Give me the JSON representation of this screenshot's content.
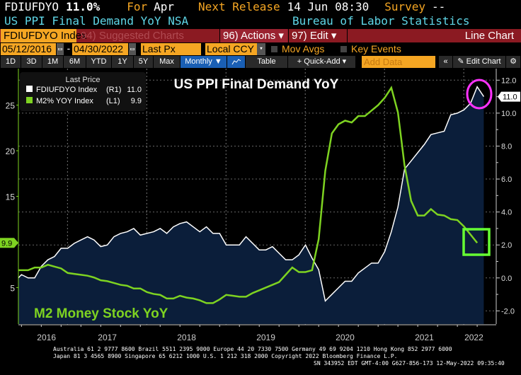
{
  "header": {
    "ticker": "FDIUFDYO",
    "value": "11.0%",
    "for_label": "For",
    "for_value": "Apr",
    "next_label": "Next Release",
    "next_value": "14 Jun 08:30",
    "survey_label": "Survey",
    "survey_value": "--",
    "description": "US PPI Final Demand YoY NSA",
    "source": "Bureau of Labor Statistics"
  },
  "commandbar": {
    "security": "FDIUFDYO Index",
    "suggested": "94) Suggested Charts",
    "actions": "96) Actions ▾",
    "edit": "97) Edit ▾",
    "chart_type": "Line Chart"
  },
  "range": {
    "start": "05/12/2016",
    "end": "04/30/2022",
    "sep": "-",
    "field": "Last Px",
    "currency": "Local CCY",
    "mov_avgs": "Mov Avgs",
    "key_events": "Key Events"
  },
  "toolbar": {
    "periods": [
      "1D",
      "3D",
      "1M",
      "6M",
      "YTD",
      "1Y",
      "5Y",
      "Max"
    ],
    "frequency": "Monthly ▼",
    "table": "Table",
    "quick_add": "+ Quick-Add ▾",
    "add_data_placeholder": "Add Data",
    "collapse": "«",
    "edit_chart": "✎ Edit Chart",
    "settings": "⚙"
  },
  "legend": {
    "title": "Last Price",
    "items": [
      {
        "name": "FDIUFDYO Index",
        "axis": "(R1)",
        "value": "11.0",
        "color": "#ffffff"
      },
      {
        "name": "M2% YOY Index",
        "axis": "(L1)",
        "value": "9.9",
        "color": "#7ed321"
      }
    ]
  },
  "footer": {
    "line1": "Australia 61 2 9777 8600 Brazil 5511 2395 9000 Europe 44 20 7330 7500 Germany 49 69 9204 1210 Hong Kong 852 2977 6000",
    "line2": "Japan 81 3 4565 8900       Singapore 65 6212 1000       U.S. 1 212 318 2000        Copyright 2022 Bloomberg Finance L.P.",
    "line3": "SN 343952 EDT  GMT-4:00 G627-856-173 12-May-2022 09:35:40"
  },
  "chart_data": {
    "type": "line",
    "title": "US PPI Final Demand YoY",
    "annotation": "M2 Money Stock YoY",
    "x_start": "2016-05",
    "x_end": "2022-04",
    "frequency": "monthly",
    "x_tick_labels": [
      "2016",
      "2017",
      "2018",
      "2019",
      "2020",
      "2021",
      "2022"
    ],
    "right_axis": {
      "ticks": [
        12,
        10,
        8,
        6,
        4,
        2,
        0,
        -2
      ],
      "tick_labels": [
        "12.0",
        "10.0",
        "8.0",
        "6.0",
        "4.0",
        "2.0",
        "0.0",
        "-2.0"
      ],
      "range": [
        -2.8,
        12.7
      ],
      "last_label": "11.0"
    },
    "left_axis": {
      "ticks": [
        25,
        20,
        15,
        5
      ],
      "tick_labels": [
        "25",
        "20",
        "15",
        "5"
      ],
      "range": [
        1.0,
        29.0
      ],
      "last_label": "9.9"
    },
    "grid": true,
    "legend_placement": "top-left",
    "series": [
      {
        "name": "FDIUFDYO Index",
        "axis": "right",
        "color": "#ffffff",
        "fill": "#0b1e3a",
        "values": [
          0.0,
          0.2,
          0.0,
          0.0,
          0.7,
          1.1,
          1.3,
          1.8,
          1.8,
          2.1,
          2.3,
          2.5,
          2.3,
          1.9,
          2.0,
          2.5,
          2.7,
          2.8,
          3.0,
          2.6,
          2.7,
          2.8,
          3.0,
          2.7,
          3.1,
          3.3,
          3.4,
          3.1,
          2.8,
          3.1,
          2.7,
          2.7,
          2.0,
          2.0,
          2.0,
          2.5,
          2.1,
          1.7,
          1.7,
          1.9,
          1.5,
          1.1,
          1.1,
          1.4,
          2.0,
          1.2,
          0.5,
          -1.4,
          -1.0,
          -0.6,
          -0.2,
          -0.2,
          0.3,
          0.6,
          0.9,
          0.9,
          1.6,
          2.8,
          4.3,
          6.6,
          7.1,
          7.6,
          8.1,
          8.7,
          8.8,
          8.9,
          9.9,
          10.0,
          10.2,
          10.6,
          11.6,
          11.0
        ]
      },
      {
        "name": "M2% YOY Index",
        "axis": "left",
        "color": "#7ed321",
        "values": [
          6.9,
          6.9,
          6.9,
          7.2,
          7.2,
          7.5,
          7.3,
          7.1,
          6.6,
          6.5,
          6.4,
          6.3,
          6.1,
          5.8,
          5.7,
          5.5,
          5.3,
          5.2,
          4.9,
          4.9,
          4.5,
          4.3,
          4.2,
          3.8,
          3.8,
          4.1,
          3.9,
          3.8,
          3.6,
          3.3,
          3.3,
          3.7,
          4.2,
          4.1,
          4.0,
          4.0,
          4.4,
          4.7,
          5.0,
          5.3,
          5.6,
          6.4,
          7.2,
          6.7,
          6.7,
          6.9,
          10.3,
          17.8,
          21.9,
          22.9,
          23.3,
          23.1,
          23.8,
          23.8,
          24.4,
          25.0,
          25.8,
          26.9,
          24.2,
          18.4,
          14.5,
          12.9,
          12.9,
          13.6,
          13.0,
          12.9,
          12.5,
          12.4,
          11.7,
          10.8,
          9.9
        ]
      }
    ],
    "highlights": [
      {
        "shape": "circle",
        "color": "#ff33ff",
        "target": "FDIUFDYO Index latest"
      },
      {
        "shape": "square",
        "color": "#66ff33",
        "target": "M2% YOY Index latest"
      }
    ]
  }
}
